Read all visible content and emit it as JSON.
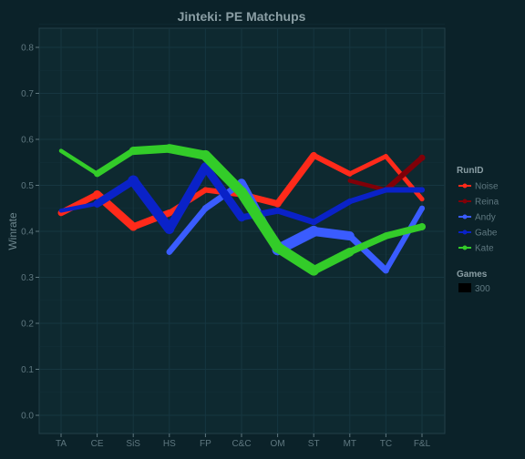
{
  "chart_data": {
    "type": "line",
    "title": "Jinteki: PE Matchups",
    "xlabel": "",
    "ylabel": "Winrate",
    "categories": [
      "TA",
      "CE",
      "SiS",
      "HS",
      "FP",
      "C&C",
      "OM",
      "ST",
      "MT",
      "TC",
      "F&L"
    ],
    "y_ticks": [
      "0.0",
      "0.1",
      "0.2",
      "0.3",
      "0.4",
      "0.5",
      "0.6",
      "0.7",
      "0.8"
    ],
    "ylim": [
      -0.02,
      0.85
    ],
    "grid": true,
    "legend_position": "right",
    "colors": {
      "background": "#0b2229",
      "panel": "#0e2930",
      "grid": "#163640",
      "Noise": "#ff2a1a",
      "Reina": "#800008",
      "Andy": "#3a5cff",
      "Gabe": "#0a22c8",
      "Kate": "#33cc29"
    },
    "series": [
      {
        "name": "Noise",
        "values": [
          0.44,
          0.48,
          0.41,
          0.44,
          0.49,
          0.48,
          0.46,
          0.565,
          0.525,
          0.563,
          0.47
        ],
        "widths": [
          5,
          9,
          9,
          6,
          6,
          6,
          8,
          7,
          5,
          5,
          5
        ]
      },
      {
        "name": "Reina",
        "values": [
          null,
          null,
          null,
          null,
          null,
          null,
          null,
          null,
          0.51,
          0.49,
          0.56
        ],
        "widths": [
          0,
          0,
          0,
          0,
          0,
          0,
          0,
          0,
          4,
          5,
          7
        ]
      },
      {
        "name": "Andy",
        "values": [
          null,
          null,
          null,
          0.355,
          0.45,
          0.505,
          0.36,
          0.4,
          0.39,
          0.315,
          0.45
        ],
        "widths": [
          0,
          0,
          0,
          6,
          7,
          7,
          12,
          12,
          8,
          6,
          6
        ]
      },
      {
        "name": "Gabe",
        "values": [
          0.445,
          0.46,
          0.51,
          0.405,
          0.54,
          0.43,
          0.445,
          0.42,
          0.465,
          0.49,
          0.49
        ],
        "widths": [
          4,
          5,
          12,
          10,
          10,
          8,
          6,
          7,
          6,
          6,
          6
        ]
      },
      {
        "name": "Kate",
        "values": [
          0.575,
          0.525,
          0.575,
          0.58,
          0.565,
          0.485,
          0.365,
          0.315,
          0.355,
          0.39,
          0.41
        ],
        "widths": [
          4,
          5,
          9,
          9,
          11,
          12,
          12,
          11,
          8,
          7,
          8
        ]
      }
    ],
    "legend": {
      "color_title": "RunID",
      "color_entries": [
        "Noise",
        "Reina",
        "Andy",
        "Gabe",
        "Kate"
      ],
      "size_title": "Games",
      "size_entries": [
        "300"
      ]
    }
  }
}
